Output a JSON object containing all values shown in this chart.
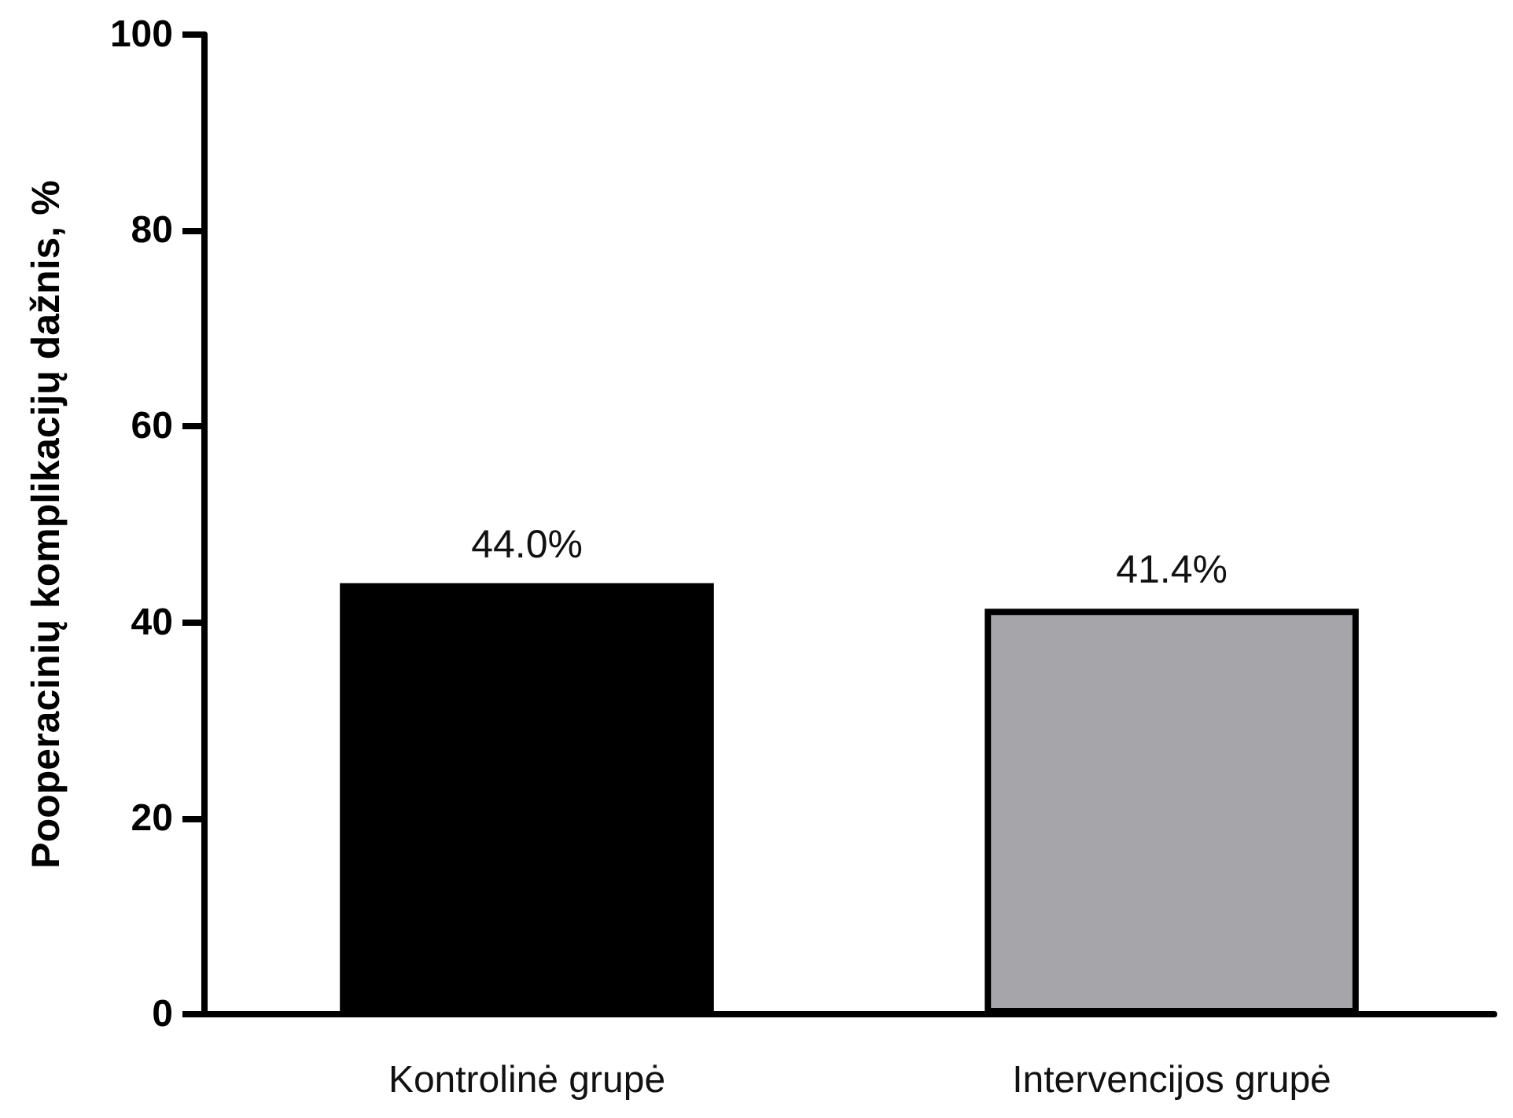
{
  "chart_data": {
    "type": "bar",
    "ylabel": "Pooperacinių komplikacijų dažnis, %",
    "categories": [
      "Kontrolinė grupė",
      "Intervencijos grupė"
    ],
    "values": [
      44.0,
      41.4
    ],
    "colors": [
      "#000000",
      "#a6a5aa"
    ],
    "value_labels": [
      "44.0%",
      "41.4%"
    ],
    "ylim": [
      0,
      100
    ],
    "yticks": [
      0,
      20,
      40,
      60,
      80,
      100
    ],
    "grid": false
  }
}
